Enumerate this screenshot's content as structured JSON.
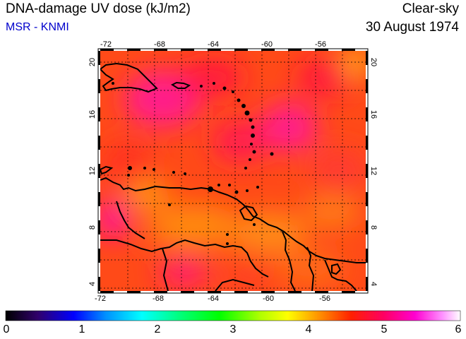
{
  "header": {
    "title": "DNA-damage UV dose (kJ/m2)",
    "source": "MSR - KNMI",
    "condition": "Clear-sky",
    "date": "30 August 1974"
  },
  "map": {
    "lon_ticks": [
      "-72",
      "-68",
      "-64",
      "-60",
      "-56"
    ],
    "lat_ticks": [
      "20",
      "16",
      "12",
      "8",
      "4"
    ],
    "lon_range": [
      -72,
      -52
    ],
    "lat_range": [
      3.5,
      20.5
    ]
  },
  "colorbar": {
    "labels": [
      "0",
      "1",
      "2",
      "3",
      "4",
      "5",
      "6"
    ],
    "colors": [
      "#000000",
      "#3a0070",
      "#0000ff",
      "#00a0ff",
      "#00ffff",
      "#00ff80",
      "#00ff00",
      "#a0ff00",
      "#ffff00",
      "#ffa000",
      "#ff3000",
      "#ff0050",
      "#ff00c0",
      "#ff60ff",
      "#ffffff"
    ]
  }
}
